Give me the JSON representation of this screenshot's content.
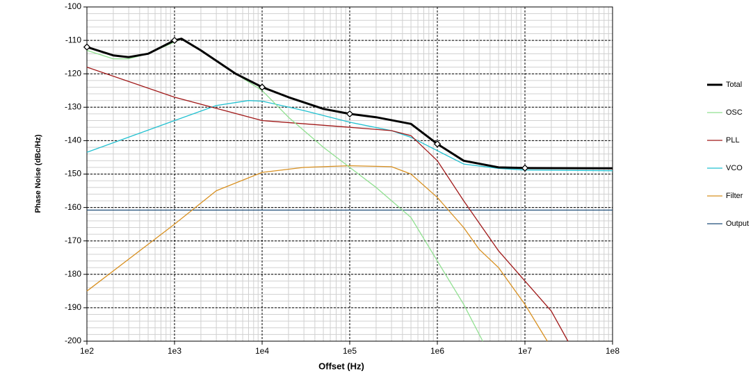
{
  "chart_data": {
    "type": "line",
    "xlabel": "Offset (Hz)",
    "ylabel": "Phase Noise (dBc/Hz)",
    "xscale": "log",
    "xlim": [
      100,
      100000000
    ],
    "ylim": [
      -200,
      -100
    ],
    "xticks": [
      {
        "value": 100,
        "label": "1e2"
      },
      {
        "value": 1000,
        "label": "1e3"
      },
      {
        "value": 10000,
        "label": "1e4"
      },
      {
        "value": 100000,
        "label": "1e5"
      },
      {
        "value": 1000000,
        "label": "1e6"
      },
      {
        "value": 10000000,
        "label": "1e7"
      },
      {
        "value": 100000000,
        "label": "1e8"
      }
    ],
    "yticks": [
      -100,
      -110,
      -120,
      -130,
      -140,
      -150,
      -160,
      -170,
      -180,
      -190,
      -200
    ],
    "grid": true,
    "minor_grid": true,
    "legend": "right",
    "series": [
      {
        "name": "Total",
        "color": "#000000",
        "width": 3,
        "markers": true,
        "x": [
          100,
          200,
          300,
          500,
          1000,
          1200,
          2000,
          5000,
          10000,
          20000,
          50000,
          100000,
          200000,
          500000,
          1000000,
          2000000,
          5000000,
          10000000,
          100000000
        ],
        "values": [
          -112,
          -114.5,
          -115,
          -114,
          -110,
          -109.5,
          -113,
          -120,
          -124,
          -127,
          -130.5,
          -132,
          -133,
          -135,
          -141,
          -146,
          -148,
          -148.2,
          -148.3
        ]
      },
      {
        "name": "OSC",
        "color": "#90e090",
        "width": 1.3,
        "x": [
          100,
          200,
          300,
          500,
          1000,
          1200,
          2000,
          5000,
          10000,
          20000,
          50000,
          100000,
          200000,
          500000,
          1000000,
          2000000,
          3300000
        ],
        "values": [
          -113,
          -115.5,
          -115.5,
          -114,
          -110.5,
          -109.5,
          -113,
          -120,
          -125,
          -133,
          -142,
          -148,
          -154,
          -163,
          -176,
          -189,
          -200
        ]
      },
      {
        "name": "PLL",
        "color": "#a01818",
        "width": 1.3,
        "x": [
          100,
          1000,
          10000,
          100000,
          300000,
          500000,
          1000000,
          2000000,
          5000000,
          10000000,
          20000000,
          31000000
        ],
        "values": [
          -118,
          -127,
          -134,
          -136,
          -137,
          -138.5,
          -146,
          -158,
          -173,
          -182,
          -191,
          -200
        ]
      },
      {
        "name": "VCO",
        "color": "#20c0d0",
        "width": 1.3,
        "x": [
          100,
          1000,
          3000,
          7000,
          10000,
          30000,
          100000,
          300000,
          500000,
          1000000,
          2000000,
          5000000,
          10000000,
          100000000
        ],
        "values": [
          -143.5,
          -134,
          -129.5,
          -128,
          -128.2,
          -131,
          -134.5,
          -137,
          -139,
          -143,
          -147,
          -148.3,
          -148.8,
          -149
        ]
      },
      {
        "name": "Filter",
        "color": "#d89020",
        "width": 1.3,
        "x": [
          100,
          1000,
          3000,
          10000,
          30000,
          100000,
          300000,
          500000,
          1000000,
          2000000,
          3000000,
          5000000,
          10000000,
          18000000
        ],
        "values": [
          -185,
          -165,
          -155,
          -149.5,
          -148,
          -147.5,
          -147.8,
          -150,
          -157,
          -166,
          -172.5,
          -178,
          -189,
          -200
        ]
      },
      {
        "name": "Output",
        "color": "#1f4e79",
        "width": 1.3,
        "x": [
          100,
          100000000
        ],
        "values": [
          -160.8,
          -160.8
        ]
      }
    ]
  }
}
